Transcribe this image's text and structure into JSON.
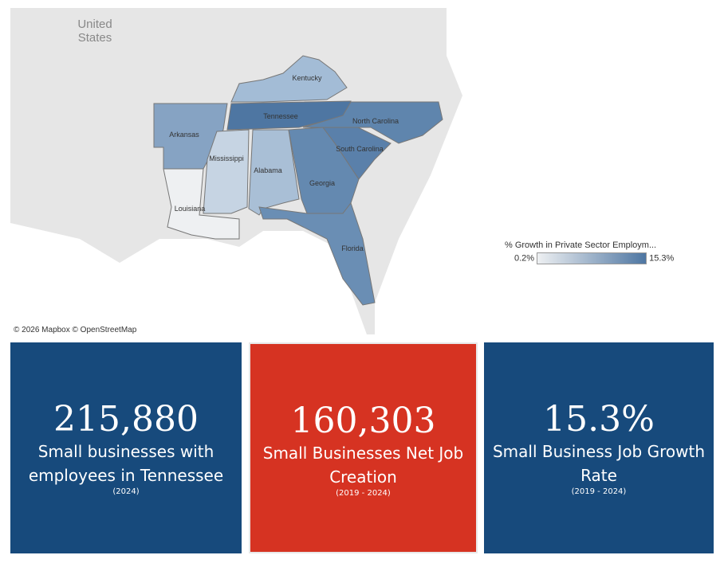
{
  "map": {
    "country_label": "United States",
    "attribution": "© 2026 Mapbox  © OpenStreetMap",
    "legend": {
      "title": "% Growth in Private Sector Employm...",
      "min": "0.2%",
      "max": "15.3%",
      "color_low": "#eef0f2",
      "color_high": "#4e76a2"
    },
    "states": [
      {
        "name": "Kentucky",
        "color": "#a3bcd6"
      },
      {
        "name": "Tennessee",
        "color": "#4e76a2"
      },
      {
        "name": "Arkansas",
        "color": "#86a3c3"
      },
      {
        "name": "Louisiana",
        "color": "#eef0f2"
      },
      {
        "name": "Mississippi",
        "color": "#c6d4e3"
      },
      {
        "name": "Alabama",
        "color": "#a9bfd6"
      },
      {
        "name": "Georgia",
        "color": "#6489b0"
      },
      {
        "name": "South Carolina",
        "color": "#5a80aa"
      },
      {
        "name": "North Carolina",
        "color": "#5f85ad"
      },
      {
        "name": "Florida",
        "color": "#6a8eb4"
      }
    ]
  },
  "cards": [
    {
      "value": "215,880",
      "label": "Small businesses with employees in Tennessee",
      "sub": "(2024)",
      "color": "#174a7c"
    },
    {
      "value": "160,303",
      "label": "Small Businesses Net Job Creation",
      "sub": "(2019 - 2024)",
      "color": "#d63322"
    },
    {
      "value": "15.3%",
      "label": "Small Business Job Growth Rate",
      "sub": "(2019 - 2024)",
      "color": "#174a7c"
    }
  ]
}
